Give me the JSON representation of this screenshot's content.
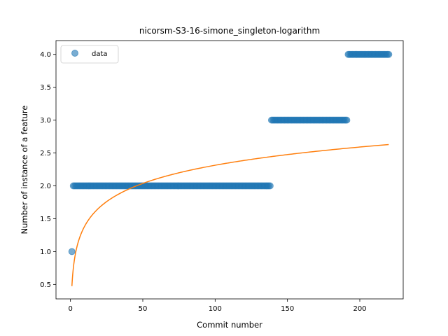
{
  "chart_data": {
    "type": "scatter",
    "title": "nicorsm-S3-16-simone_singleton-logarithm",
    "xlabel": "Commit number",
    "ylabel": "Number of instance of a feature",
    "xlim": [
      -10,
      230
    ],
    "ylim": [
      0.28,
      4.21
    ],
    "xticks": [
      0,
      50,
      100,
      150,
      200
    ],
    "yticks": [
      0.5,
      1.0,
      1.5,
      2.0,
      2.5,
      3.0,
      3.5,
      4.0
    ],
    "ytick_labels": [
      "0.5",
      "1.0",
      "1.5",
      "2.0",
      "2.5",
      "3.0",
      "3.5",
      "4.0"
    ],
    "legend": {
      "placement": "upper-left",
      "entries": [
        "data"
      ]
    },
    "grid": false,
    "series": [
      {
        "name": "data",
        "kind": "scatter",
        "color": "#1f77b4",
        "segments": [
          {
            "x_start": 1,
            "x_end": 1,
            "y": 1.0
          },
          {
            "x_start": 2,
            "x_end": 138,
            "y": 2.0
          },
          {
            "x_start": 139,
            "x_end": 191,
            "y": 3.0
          },
          {
            "x_start": 192,
            "x_end": 220,
            "y": 4.0
          }
        ]
      },
      {
        "kind": "line",
        "color": "#ff7f0e",
        "model": "logarithmic",
        "a": 0.3994,
        "b": 0.4744,
        "x_range": [
          1,
          220
        ]
      }
    ]
  }
}
